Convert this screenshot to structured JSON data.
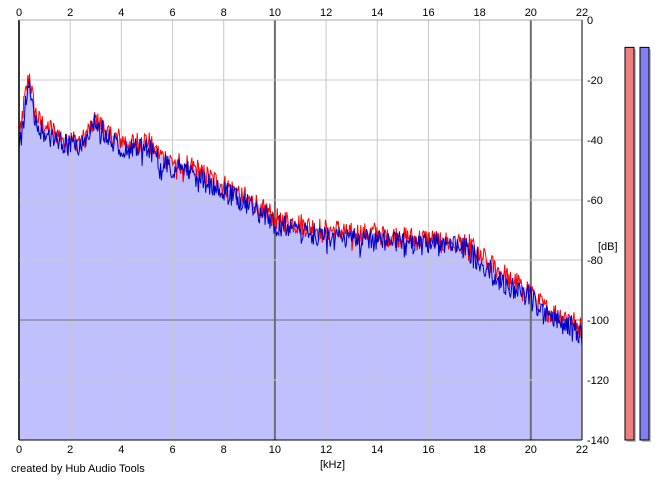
{
  "footer": {
    "credit": "created by Hub Audio Tools"
  },
  "colors": {
    "background": "#ffffff",
    "fill": "#c0c0ff",
    "left_channel": "#ff0000",
    "right_channel": "#0000c8",
    "grid_minor": "#c8c8c8",
    "grid_major": "#6e6e6e",
    "meter_left": "#f08080",
    "meter_right": "#8080f0"
  },
  "chart_data": {
    "type": "area",
    "title": "",
    "xlabel": "[kHz]",
    "ylabel": "[dB]",
    "xlim": [
      0,
      22
    ],
    "ylim": [
      -140,
      0
    ],
    "x_ticks": [
      "0",
      "2",
      "4",
      "6",
      "8",
      "10",
      "12",
      "14",
      "16",
      "18",
      "20",
      "22"
    ],
    "y_ticks": [
      "0",
      "-20",
      "-40",
      "-60",
      "-80",
      "-100",
      "-120",
      "-140"
    ],
    "grid": true,
    "x": [
      0,
      0.2,
      0.4,
      0.6,
      0.8,
      1,
      1.5,
      2,
      2.5,
      3,
      3.5,
      4,
      4.5,
      5,
      5.5,
      6,
      6.5,
      7,
      7.5,
      8,
      8.5,
      9,
      9.5,
      10,
      10.5,
      11,
      11.5,
      12,
      12.5,
      13,
      13.5,
      14,
      14.5,
      15,
      15.5,
      16,
      16.5,
      17,
      17.5,
      18,
      18.5,
      19,
      19.5,
      20,
      20.5,
      21,
      21.5,
      22
    ],
    "series": [
      {
        "values": [
          -38,
          -28,
          -18,
          -30,
          -34,
          -35,
          -38,
          -40,
          -40,
          -33,
          -38,
          -40,
          -41,
          -40,
          -45,
          -47,
          -48,
          -50,
          -53,
          -55,
          -57,
          -60,
          -62,
          -66,
          -67,
          -68,
          -69,
          -70,
          -70,
          -71,
          -71,
          -71,
          -72,
          -72,
          -73,
          -73,
          -74,
          -74,
          -74,
          -78,
          -82,
          -85,
          -88,
          -90,
          -96,
          -98,
          -99,
          -103
        ]
      },
      {
        "values": [
          -45,
          -30,
          -22,
          -33,
          -36,
          -37,
          -40,
          -42,
          -41,
          -34,
          -39,
          -42,
          -43,
          -42,
          -47,
          -49,
          -50,
          -52,
          -55,
          -57,
          -59,
          -62,
          -64,
          -68,
          -69,
          -70,
          -71,
          -72,
          -72,
          -73,
          -73,
          -73,
          -74,
          -74,
          -75,
          -74,
          -75,
          -75,
          -76,
          -80,
          -84,
          -88,
          -90,
          -92,
          -98,
          -100,
          -101,
          -105
        ]
      }
    ],
    "level_meters": [
      0.96,
      0.96
    ]
  }
}
